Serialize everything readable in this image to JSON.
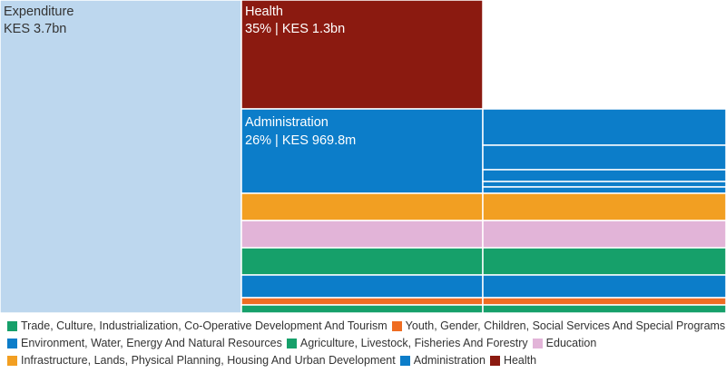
{
  "chart_data": {
    "type": "treemap",
    "root": {
      "label": "Expenditure",
      "value_text": "KES 3.7bn",
      "color": "#bdd7ee"
    },
    "categories": [
      {
        "name": "Health",
        "legend_label": "Health",
        "color": "#8b1a10",
        "share_percent": 35,
        "amount_text": "KES 1.3bn",
        "label": "Health",
        "value_text": "35% | KES 1.3bn"
      },
      {
        "name": "Administration",
        "legend_label": "Administration",
        "color": "#0c7dc9",
        "share_percent": 26,
        "amount_text": "KES 969.8m",
        "label": "Administration",
        "value_text": "26% | KES 969.8m"
      },
      {
        "name": "Infrastructure, Lands, Physical Planning, Housing And Urban Development",
        "legend_label": "Infrastructure, Lands, Physical Planning, Housing And Urban Development",
        "color": "#f29f22"
      },
      {
        "name": "Education",
        "legend_label": "Education",
        "color": "#e2b4d8"
      },
      {
        "name": "Agriculture, Livestock, Fisheries And Forestry",
        "legend_label": "Agriculture, Livestock, Fisheries And Forestry",
        "color": "#16a06a"
      },
      {
        "name": "Environment, Water, Energy And Natural Resources",
        "legend_label": "Environment, Water, Energy And Natural Resources",
        "color": "#0c7dc9"
      },
      {
        "name": "Youth, Gender, Children, Social Services And Special Programs",
        "legend_label": "Youth, Gender, Children, Social Services And Special Programs",
        "color": "#ef6d22"
      },
      {
        "name": "Trade, Culture, Industrialization, Co-Operative Development And Tourism",
        "legend_label": "Trade, Culture, Industrialization, Co-Operative Development And Tourism",
        "color": "#16a06a"
      }
    ],
    "legend_rows": [
      [
        "Trade, Culture, Industrialization, Co-Operative Development And Tourism",
        "Youth, Gender, Children, Social Services And Special Programs"
      ],
      [
        "Environment, Water, Energy And Natural Resources",
        "Agriculture, Livestock, Fisheries And Forestry",
        "Education"
      ],
      [
        "Infrastructure, Lands, Physical Planning, Housing And Urban Development",
        "Administration",
        "Health"
      ]
    ]
  }
}
